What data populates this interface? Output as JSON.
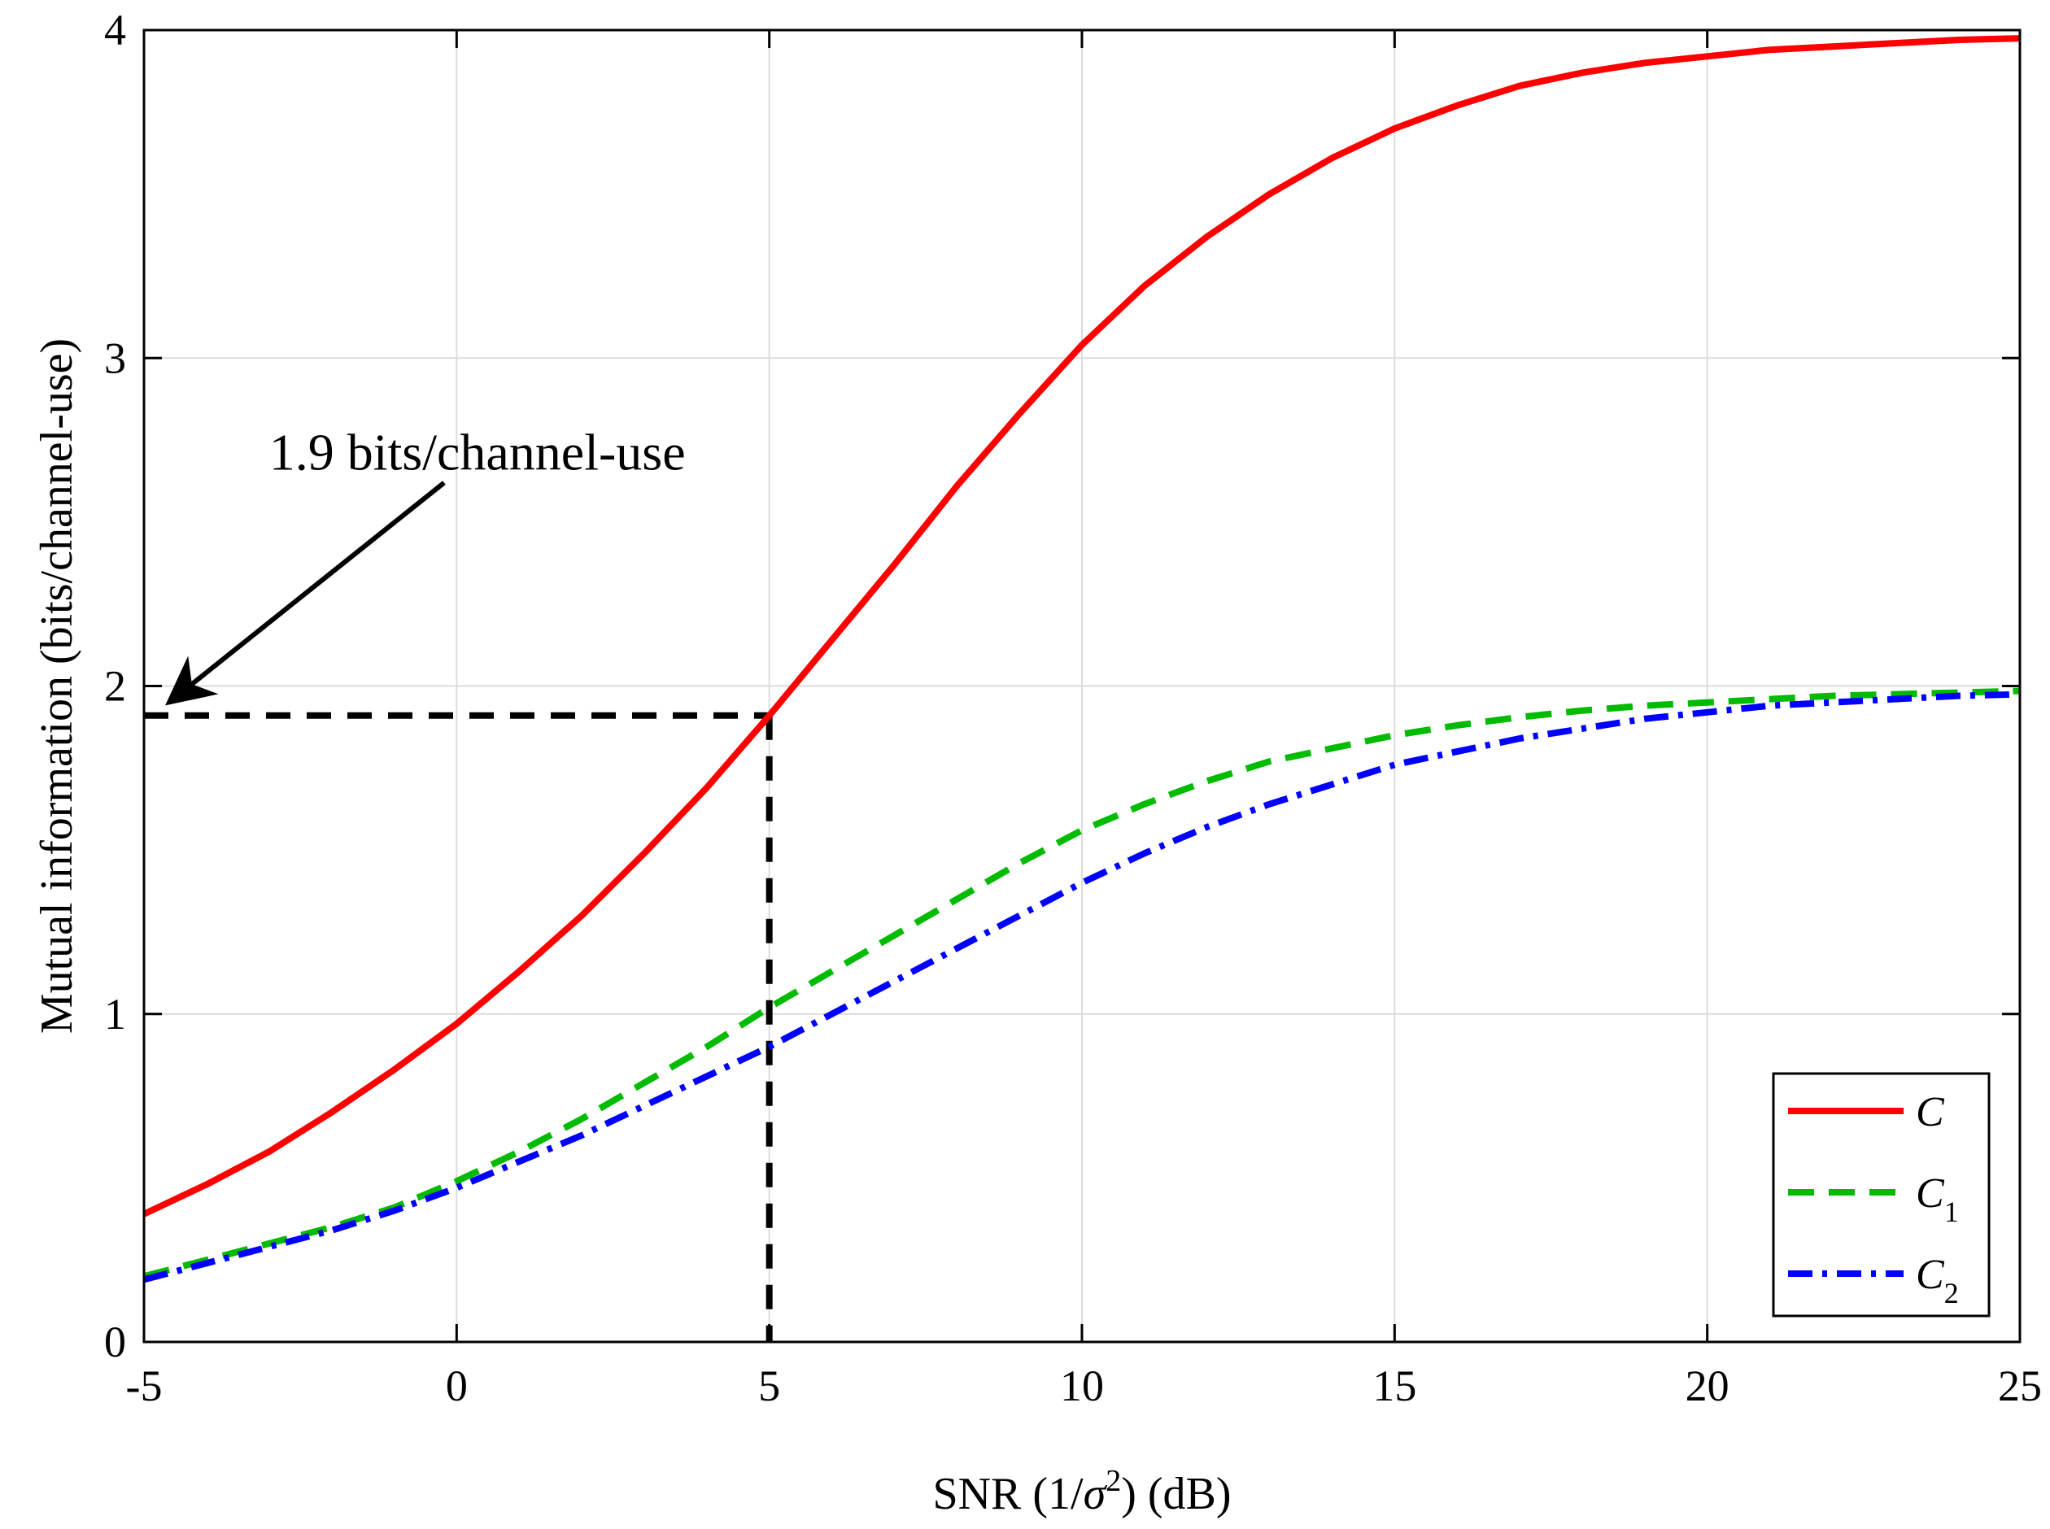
{
  "chart_data": {
    "type": "line",
    "title": "",
    "xlabel": "SNR (1/σ²) (dB)",
    "xlabel_parts": {
      "pre": "SNR (1/",
      "sym": "σ",
      "sup": "2",
      "post": ") (dB)"
    },
    "ylabel": "Mutual information (bits/channel-use)",
    "xlim": [
      -5,
      25
    ],
    "ylim": [
      0,
      4
    ],
    "xticks": [
      -5,
      0,
      5,
      10,
      15,
      20,
      25
    ],
    "yticks": [
      0,
      1,
      2,
      3,
      4
    ],
    "xtick_labels": [
      "-5",
      "0",
      "5",
      "10",
      "15",
      "20",
      "25"
    ],
    "ytick_labels": [
      "0",
      "1",
      "2",
      "3",
      "4"
    ],
    "grid": true,
    "legend_position": "bottom-right",
    "x": [
      -5,
      -4,
      -3,
      -2,
      -1,
      0,
      1,
      2,
      3,
      4,
      5,
      6,
      7,
      8,
      9,
      10,
      11,
      12,
      13,
      14,
      15,
      16,
      17,
      18,
      19,
      20,
      21,
      22,
      23,
      24,
      25
    ],
    "series": [
      {
        "name": "C",
        "label_main": "C",
        "label_sub": "",
        "color": "#ff0000",
        "style": "solid",
        "values": [
          0.39,
          0.48,
          0.58,
          0.7,
          0.83,
          0.97,
          1.13,
          1.3,
          1.49,
          1.69,
          1.91,
          2.14,
          2.37,
          2.61,
          2.83,
          3.04,
          3.22,
          3.37,
          3.5,
          3.61,
          3.7,
          3.77,
          3.83,
          3.87,
          3.9,
          3.92,
          3.94,
          3.95,
          3.96,
          3.97,
          3.975
        ]
      },
      {
        "name": "C1",
        "label_main": "C",
        "label_sub": "1",
        "color": "#00bb00",
        "style": "dashed",
        "values": [
          0.2,
          0.25,
          0.3,
          0.35,
          0.41,
          0.49,
          0.58,
          0.68,
          0.79,
          0.9,
          1.02,
          1.13,
          1.24,
          1.35,
          1.46,
          1.56,
          1.64,
          1.71,
          1.77,
          1.81,
          1.85,
          1.88,
          1.905,
          1.925,
          1.94,
          1.95,
          1.96,
          1.97,
          1.975,
          1.98,
          1.985
        ]
      },
      {
        "name": "C2",
        "label_main": "C",
        "label_sub": "2",
        "color": "#0000ff",
        "style": "dashdot",
        "values": [
          0.19,
          0.24,
          0.29,
          0.34,
          0.4,
          0.47,
          0.55,
          0.63,
          0.72,
          0.81,
          0.9,
          1.0,
          1.1,
          1.2,
          1.3,
          1.4,
          1.49,
          1.57,
          1.64,
          1.7,
          1.76,
          1.8,
          1.84,
          1.87,
          1.9,
          1.92,
          1.94,
          1.95,
          1.96,
          1.97,
          1.975
        ]
      }
    ],
    "reference_point": {
      "x": 5,
      "y": 1.91
    },
    "annotation": {
      "text": "1.9 bits/channel-use",
      "arrow_from": [
        -0.2,
        2.62
      ],
      "arrow_to": [
        -4.6,
        1.95
      ],
      "text_at": [
        -3.0,
        2.66
      ]
    }
  }
}
